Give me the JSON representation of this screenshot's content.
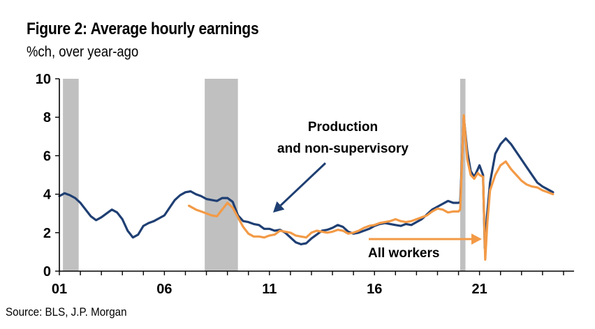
{
  "header": {
    "title": "Figure 2: Average hourly earnings",
    "subtitle": "%ch, over year-ago"
  },
  "footer": {
    "source": "Source: BLS, J.P. Morgan"
  },
  "chart_data": {
    "type": "line",
    "title": "Figure 2: Average hourly earnings",
    "subtitle": "%ch, over year-ago",
    "xlabel": "",
    "ylabel": "",
    "xlim": [
      2001.0,
      2025.5
    ],
    "ylim": [
      0,
      10
    ],
    "x_ticks": [
      {
        "value": 2001,
        "label": "01"
      },
      {
        "value": 2006,
        "label": "06"
      },
      {
        "value": 2011,
        "label": "11"
      },
      {
        "value": 2016,
        "label": "16"
      },
      {
        "value": 2021,
        "label": "21"
      }
    ],
    "y_ticks": [
      0,
      2,
      4,
      6,
      8,
      10
    ],
    "grid": false,
    "recession_shading": [
      {
        "start": 2001.17,
        "end": 2001.92
      },
      {
        "start": 2007.92,
        "end": 2009.5
      },
      {
        "start": 2020.08,
        "end": 2020.33
      }
    ],
    "annotations": [
      {
        "text": "Production",
        "series": "production"
      },
      {
        "text": "and non-supervisory",
        "series": "production"
      },
      {
        "text": "All workers",
        "series": "all"
      }
    ],
    "series": [
      {
        "id": "production",
        "name": "Production and non-supervisory",
        "color": "#1f3f73",
        "points": [
          [
            2001.0,
            3.9
          ],
          [
            2001.25,
            4.05
          ],
          [
            2001.5,
            3.95
          ],
          [
            2001.75,
            3.8
          ],
          [
            2002.0,
            3.55
          ],
          [
            2002.25,
            3.2
          ],
          [
            2002.5,
            2.85
          ],
          [
            2002.75,
            2.65
          ],
          [
            2003.0,
            2.8
          ],
          [
            2003.25,
            3.0
          ],
          [
            2003.5,
            3.2
          ],
          [
            2003.75,
            3.05
          ],
          [
            2004.0,
            2.7
          ],
          [
            2004.25,
            2.1
          ],
          [
            2004.5,
            1.75
          ],
          [
            2004.75,
            1.9
          ],
          [
            2005.0,
            2.35
          ],
          [
            2005.25,
            2.5
          ],
          [
            2005.5,
            2.6
          ],
          [
            2005.75,
            2.75
          ],
          [
            2006.0,
            2.9
          ],
          [
            2006.25,
            3.3
          ],
          [
            2006.5,
            3.7
          ],
          [
            2006.75,
            3.95
          ],
          [
            2007.0,
            4.1
          ],
          [
            2007.25,
            4.15
          ],
          [
            2007.5,
            4.0
          ],
          [
            2007.75,
            3.9
          ],
          [
            2008.0,
            3.75
          ],
          [
            2008.25,
            3.7
          ],
          [
            2008.5,
            3.65
          ],
          [
            2008.75,
            3.8
          ],
          [
            2009.0,
            3.8
          ],
          [
            2009.25,
            3.6
          ],
          [
            2009.5,
            2.9
          ],
          [
            2009.75,
            2.6
          ],
          [
            2010.0,
            2.55
          ],
          [
            2010.25,
            2.45
          ],
          [
            2010.5,
            2.4
          ],
          [
            2010.75,
            2.2
          ],
          [
            2011.0,
            2.2
          ],
          [
            2011.25,
            2.1
          ],
          [
            2011.5,
            2.15
          ],
          [
            2011.75,
            2.0
          ],
          [
            2012.0,
            1.75
          ],
          [
            2012.25,
            1.5
          ],
          [
            2012.5,
            1.4
          ],
          [
            2012.75,
            1.45
          ],
          [
            2013.0,
            1.7
          ],
          [
            2013.25,
            1.9
          ],
          [
            2013.5,
            2.1
          ],
          [
            2013.75,
            2.15
          ],
          [
            2014.0,
            2.25
          ],
          [
            2014.25,
            2.4
          ],
          [
            2014.5,
            2.3
          ],
          [
            2014.75,
            2.05
          ],
          [
            2015.0,
            1.95
          ],
          [
            2015.25,
            2.0
          ],
          [
            2015.5,
            2.1
          ],
          [
            2015.75,
            2.2
          ],
          [
            2016.0,
            2.35
          ],
          [
            2016.25,
            2.45
          ],
          [
            2016.5,
            2.5
          ],
          [
            2016.75,
            2.45
          ],
          [
            2017.0,
            2.4
          ],
          [
            2017.25,
            2.35
          ],
          [
            2017.5,
            2.45
          ],
          [
            2017.75,
            2.4
          ],
          [
            2018.0,
            2.55
          ],
          [
            2018.25,
            2.7
          ],
          [
            2018.5,
            2.95
          ],
          [
            2018.75,
            3.2
          ],
          [
            2019.0,
            3.35
          ],
          [
            2019.25,
            3.5
          ],
          [
            2019.5,
            3.65
          ],
          [
            2019.75,
            3.55
          ],
          [
            2020.0,
            3.55
          ],
          [
            2020.08,
            3.6
          ],
          [
            2020.25,
            8.0
          ],
          [
            2020.42,
            6.2
          ],
          [
            2020.58,
            5.2
          ],
          [
            2020.75,
            4.9
          ],
          [
            2020.92,
            5.3
          ],
          [
            2021.0,
            5.5
          ],
          [
            2021.17,
            5.0
          ],
          [
            2021.25,
            1.2
          ],
          [
            2021.35,
            2.8
          ],
          [
            2021.5,
            4.6
          ],
          [
            2021.75,
            6.1
          ],
          [
            2022.0,
            6.6
          ],
          [
            2022.25,
            6.9
          ],
          [
            2022.5,
            6.6
          ],
          [
            2022.75,
            6.2
          ],
          [
            2023.0,
            5.8
          ],
          [
            2023.25,
            5.4
          ],
          [
            2023.5,
            5.0
          ],
          [
            2023.75,
            4.6
          ],
          [
            2024.0,
            4.4
          ],
          [
            2024.25,
            4.25
          ],
          [
            2024.5,
            4.1
          ]
        ]
      },
      {
        "id": "all",
        "name": "All workers",
        "color": "#f39a46",
        "points": [
          [
            2007.17,
            3.4
          ],
          [
            2007.5,
            3.2
          ],
          [
            2007.75,
            3.1
          ],
          [
            2008.0,
            3.0
          ],
          [
            2008.25,
            2.9
          ],
          [
            2008.5,
            2.85
          ],
          [
            2008.75,
            3.2
          ],
          [
            2009.0,
            3.55
          ],
          [
            2009.25,
            3.3
          ],
          [
            2009.5,
            2.8
          ],
          [
            2009.75,
            2.3
          ],
          [
            2010.0,
            1.95
          ],
          [
            2010.25,
            1.8
          ],
          [
            2010.5,
            1.8
          ],
          [
            2010.75,
            1.75
          ],
          [
            2011.0,
            1.85
          ],
          [
            2011.25,
            1.9
          ],
          [
            2011.5,
            2.1
          ],
          [
            2011.75,
            2.05
          ],
          [
            2012.0,
            2.0
          ],
          [
            2012.25,
            1.85
          ],
          [
            2012.5,
            1.8
          ],
          [
            2012.75,
            1.75
          ],
          [
            2013.0,
            2.0
          ],
          [
            2013.25,
            2.1
          ],
          [
            2013.5,
            2.05
          ],
          [
            2013.75,
            2.0
          ],
          [
            2014.0,
            2.05
          ],
          [
            2014.25,
            2.15
          ],
          [
            2014.5,
            2.1
          ],
          [
            2014.75,
            1.95
          ],
          [
            2015.0,
            2.0
          ],
          [
            2015.25,
            2.1
          ],
          [
            2015.5,
            2.25
          ],
          [
            2015.75,
            2.35
          ],
          [
            2016.0,
            2.4
          ],
          [
            2016.25,
            2.5
          ],
          [
            2016.5,
            2.55
          ],
          [
            2016.75,
            2.6
          ],
          [
            2017.0,
            2.7
          ],
          [
            2017.25,
            2.6
          ],
          [
            2017.5,
            2.55
          ],
          [
            2017.75,
            2.6
          ],
          [
            2018.0,
            2.7
          ],
          [
            2018.25,
            2.8
          ],
          [
            2018.5,
            2.9
          ],
          [
            2018.75,
            3.1
          ],
          [
            2019.0,
            3.25
          ],
          [
            2019.25,
            3.2
          ],
          [
            2019.5,
            3.05
          ],
          [
            2019.75,
            3.1
          ],
          [
            2020.0,
            3.1
          ],
          [
            2020.08,
            3.2
          ],
          [
            2020.25,
            8.1
          ],
          [
            2020.42,
            5.8
          ],
          [
            2020.58,
            5.0
          ],
          [
            2020.75,
            4.8
          ],
          [
            2020.92,
            5.1
          ],
          [
            2021.0,
            5.0
          ],
          [
            2021.17,
            4.9
          ],
          [
            2021.27,
            0.6
          ],
          [
            2021.37,
            2.5
          ],
          [
            2021.5,
            4.2
          ],
          [
            2021.75,
            5.0
          ],
          [
            2022.0,
            5.5
          ],
          [
            2022.25,
            5.7
          ],
          [
            2022.5,
            5.3
          ],
          [
            2022.75,
            5.0
          ],
          [
            2023.0,
            4.7
          ],
          [
            2023.25,
            4.5
          ],
          [
            2023.5,
            4.4
          ],
          [
            2023.75,
            4.35
          ],
          [
            2024.0,
            4.2
          ],
          [
            2024.25,
            4.1
          ],
          [
            2024.5,
            4.0
          ]
        ]
      }
    ]
  }
}
